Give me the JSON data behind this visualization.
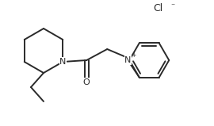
{
  "bg_color": "#ffffff",
  "line_color": "#2a2a2a",
  "line_width": 1.4,
  "font_size_atom": 8.0,
  "font_size_charge": 5.5,
  "Cl_label": "Cl",
  "Cl_charge": "⁻",
  "N_piperidine": "N",
  "N_pyridinium": "N",
  "N_pyridinium_charge": "+",
  "O_label": "O"
}
